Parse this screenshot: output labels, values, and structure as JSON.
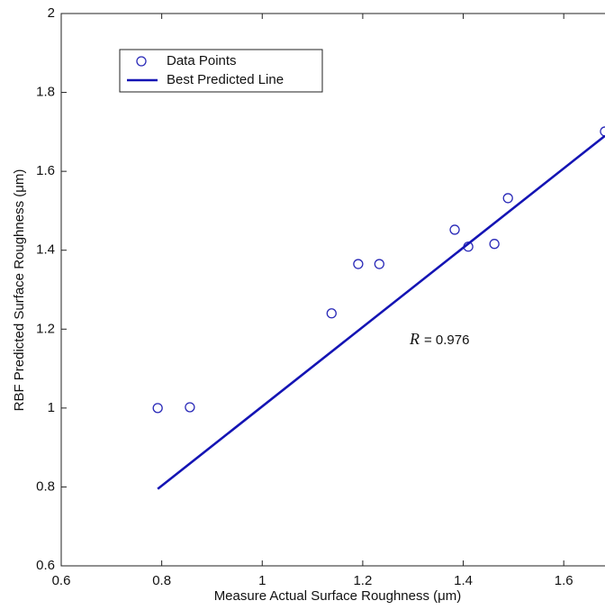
{
  "chart_data": {
    "type": "scatter",
    "x_label": "Measure Actual Surface Roughness  (μm)",
    "y_label": "RBF Predicted Surface Roughness  (μm)",
    "annotation": {
      "symbol": "R",
      "text": "= 0.976"
    },
    "xlim": [
      0.6,
      1.7
    ],
    "ylim": [
      0.6,
      2
    ],
    "xticks": [
      0.6,
      0.8,
      1,
      1.2,
      1.4,
      1.6
    ],
    "yticks": [
      0.6,
      0.8,
      1,
      1.2,
      1.4,
      1.6,
      1.8,
      2
    ],
    "legend": "upper left",
    "series": [
      {
        "name": "Data Points",
        "type": "scatter",
        "color": "#2a2ab8",
        "x": [
          0.792,
          0.856,
          1.138,
          1.191,
          1.233,
          1.383,
          1.41,
          1.462,
          1.489,
          1.682
        ],
        "values": [
          1.0,
          1.002,
          1.24,
          1.365,
          1.365,
          1.452,
          1.409,
          1.416,
          1.532,
          1.701
        ]
      },
      {
        "name": "Best Predicted Line",
        "type": "line",
        "color": "#1414b4",
        "x": [
          0.792,
          1.682
        ],
        "values": [
          0.795,
          1.69
        ]
      }
    ]
  }
}
